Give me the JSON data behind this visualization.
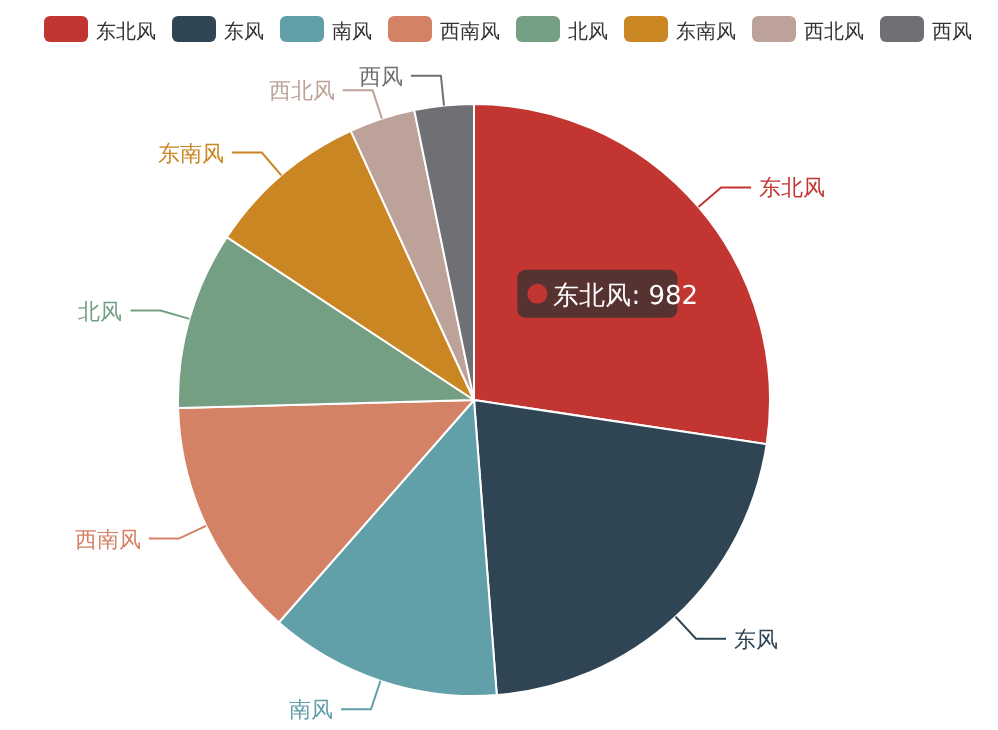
{
  "chart_data": {
    "type": "pie",
    "legend": "top",
    "categories": [
      "东北风",
      "东风",
      "南风",
      "西南风",
      "北风",
      "东南风",
      "西北风",
      "西风"
    ],
    "values": [
      982,
      767,
      455,
      470,
      348,
      319,
      129,
      116
    ],
    "colors": [
      "#c23531",
      "#2f4554",
      "#61a0a8",
      "#d48265",
      "#749f83",
      "#ca8622",
      "#bda29a",
      "#6e7074"
    ],
    "value_labels": [
      "东北风: 982",
      null,
      null,
      null,
      null,
      null,
      null,
      null
    ]
  }
}
